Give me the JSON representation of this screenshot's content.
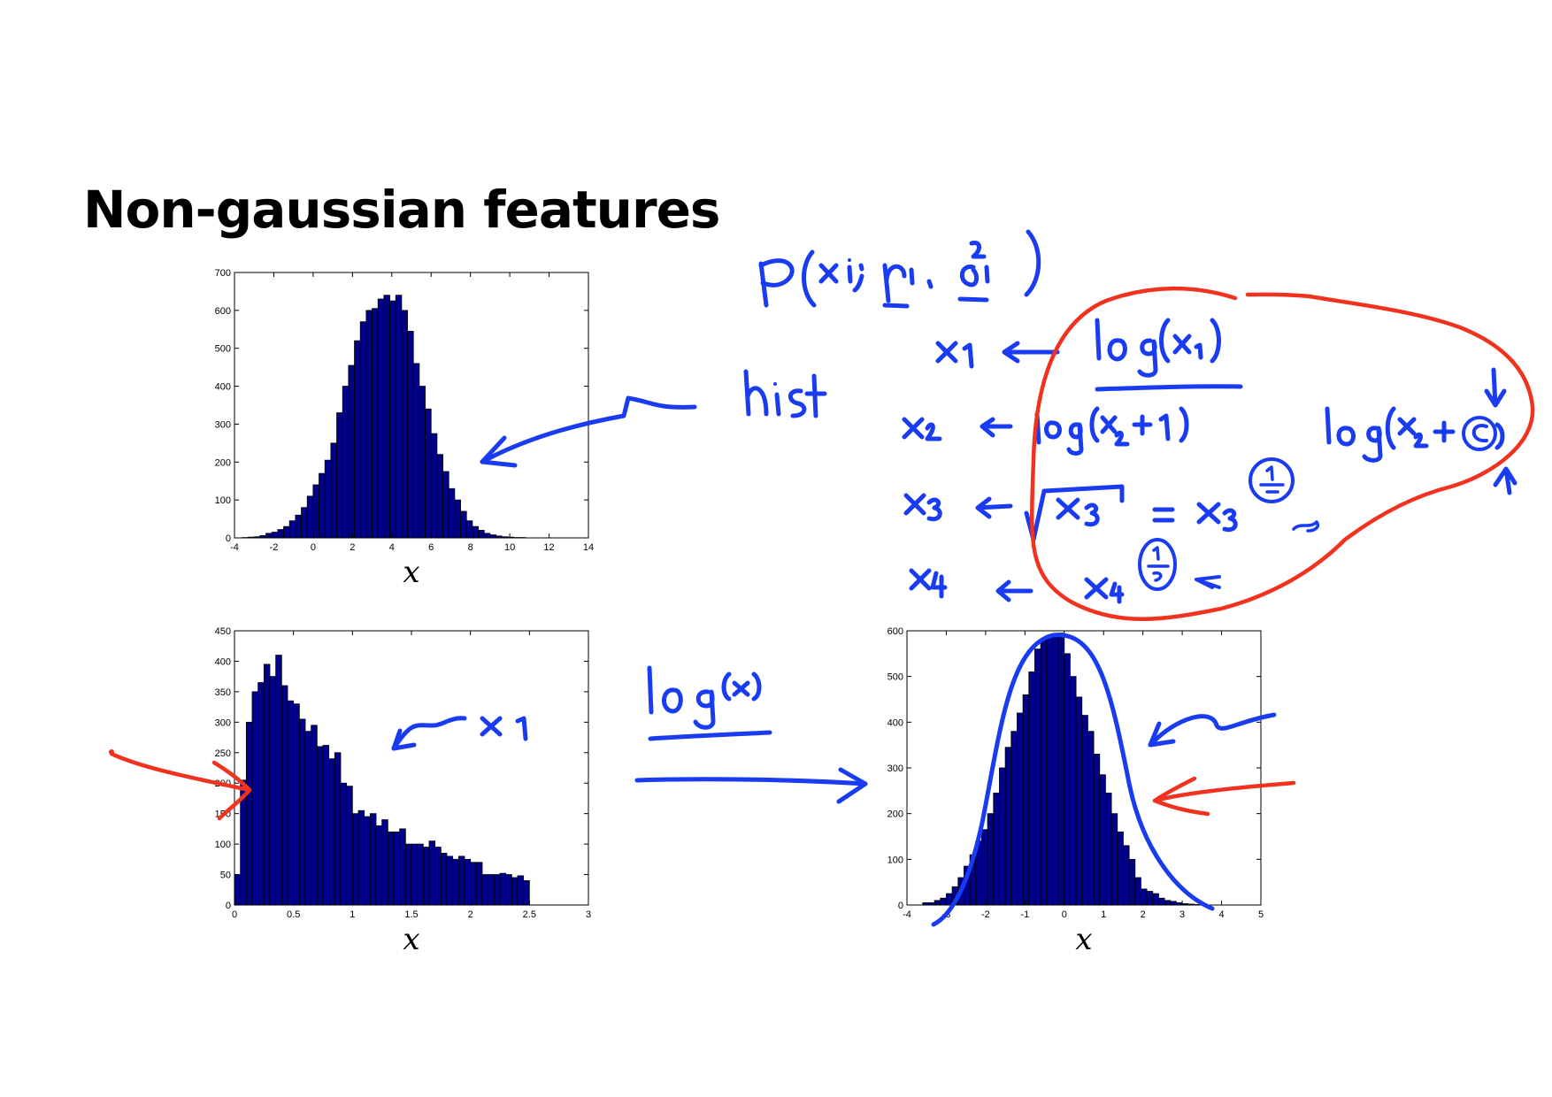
{
  "slide": {
    "title": "Non-gaussian features"
  },
  "chart_data": [
    {
      "id": "top-left",
      "type": "bar",
      "title": "",
      "xlabel": "x",
      "ylabel": "",
      "xlim": [
        -4,
        14
      ],
      "ylim": [
        0,
        700
      ],
      "xticks": [
        -4,
        -2,
        0,
        2,
        4,
        6,
        8,
        10,
        12,
        14
      ],
      "yticks": [
        0,
        100,
        200,
        300,
        400,
        500,
        600,
        700
      ],
      "bin_start": -3.6,
      "bin_width": 0.3,
      "values": [
        1,
        2,
        3,
        6,
        12,
        15,
        22,
        30,
        45,
        60,
        80,
        110,
        140,
        170,
        205,
        250,
        330,
        400,
        455,
        520,
        570,
        600,
        605,
        630,
        640,
        625,
        640,
        600,
        545,
        460,
        400,
        340,
        275,
        220,
        175,
        130,
        100,
        70,
        45,
        30,
        20,
        12,
        8,
        5,
        3,
        2,
        1,
        1
      ],
      "grid": false,
      "bar_color": "#00008b"
    },
    {
      "id": "bottom-left",
      "type": "bar",
      "title": "",
      "xlabel": "x",
      "ylabel": "",
      "xlim": [
        0,
        3
      ],
      "ylim": [
        0,
        450
      ],
      "xticks": [
        0,
        0.5,
        1,
        1.5,
        2,
        2.5,
        3
      ],
      "yticks": [
        0,
        50,
        100,
        150,
        200,
        250,
        300,
        350,
        400,
        450
      ],
      "bin_start": 0,
      "bin_width": 0.05,
      "values": [
        50,
        205,
        300,
        350,
        365,
        395,
        375,
        410,
        360,
        335,
        330,
        305,
        285,
        295,
        260,
        262,
        240,
        250,
        200,
        195,
        150,
        155,
        145,
        150,
        130,
        140,
        120,
        120,
        125,
        100,
        100,
        100,
        95,
        105,
        95,
        85,
        80,
        75,
        80,
        75,
        70,
        70,
        50,
        50,
        50,
        52,
        50,
        45,
        48,
        40
      ],
      "grid": false,
      "bar_color": "#00008b"
    },
    {
      "id": "bottom-right",
      "type": "bar",
      "title": "",
      "xlabel": "x",
      "ylabel": "",
      "xlim": [
        -4,
        5
      ],
      "ylim": [
        0,
        600
      ],
      "xticks": [
        -4,
        -3,
        -2,
        -1,
        0,
        1,
        2,
        3,
        4,
        5
      ],
      "yticks": [
        0,
        100,
        200,
        300,
        400,
        500,
        600
      ],
      "bin_start": -3.6,
      "bin_width": 0.15,
      "values": [
        5,
        5,
        10,
        15,
        25,
        40,
        60,
        85,
        110,
        140,
        165,
        200,
        245,
        300,
        345,
        380,
        420,
        460,
        510,
        560,
        580,
        590,
        590,
        595,
        550,
        500,
        455,
        415,
        380,
        330,
        285,
        245,
        200,
        160,
        130,
        100,
        60,
        35,
        30,
        25,
        15,
        10,
        8,
        5,
        3,
        2,
        1,
        1
      ],
      "grid": false,
      "bar_color": "#00008b"
    }
  ],
  "annotations": {
    "density_formula": "p(x_i; μ_i, σ_i²)",
    "hist": "hist",
    "x1_label": "x1",
    "log_x": "log(x)",
    "transforms": [
      {
        "feature": "x1",
        "transform": "log(x1)"
      },
      {
        "feature": "x2",
        "transform": "log(x2+1)"
      },
      {
        "feature": "x3",
        "transform": "√x3 = x3^(1/2)"
      },
      {
        "feature": "x4",
        "transform": "x4^(1/3)"
      }
    ],
    "log_c": "log(x2 + c)",
    "ink_colors": {
      "blue": "#1a3cf0",
      "red": "#f0321e"
    }
  }
}
